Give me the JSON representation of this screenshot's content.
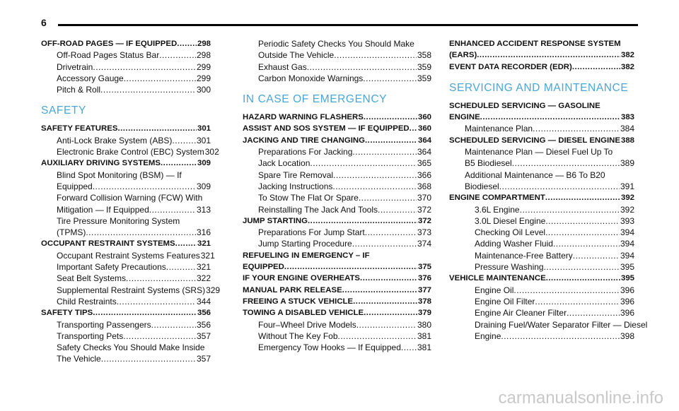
{
  "page_number": "6",
  "watermark": "carmanualsonline.info",
  "columns": [
    {
      "entries": [
        {
          "lines": [
            "OFF-ROAD PAGES — IF EQUIPPED"
          ],
          "page": "298",
          "style": "bold"
        },
        {
          "lines": [
            "Off-Road Pages Status Bar"
          ],
          "page": "298",
          "style": "sub"
        },
        {
          "lines": [
            "Drivetrain"
          ],
          "page": "299",
          "style": "sub"
        },
        {
          "lines": [
            "Accessory Gauge"
          ],
          "page": "299",
          "style": "sub"
        },
        {
          "lines": [
            "Pitch & Roll"
          ],
          "page": "300",
          "style": "sub"
        },
        {
          "heading": "SAFETY"
        },
        {
          "lines": [
            "SAFETY FEATURES"
          ],
          "page": "301",
          "style": "bold"
        },
        {
          "lines": [
            "Anti-Lock Brake System (ABS)"
          ],
          "page": "301",
          "style": "sub"
        },
        {
          "lines": [
            "Electronic Brake Control (EBC) System"
          ],
          "page": "302",
          "style": "sub"
        },
        {
          "lines": [
            "AUXILIARY DRIVING SYSTEMS"
          ],
          "page": "309",
          "style": "bold"
        },
        {
          "lines": [
            "Blind Spot Monitoring (BSM) — If",
            "Equipped"
          ],
          "page": "309",
          "style": "sub"
        },
        {
          "lines": [
            "Forward Collision Warning (FCW) With",
            "Mitigation — If Equipped"
          ],
          "page": "313",
          "style": "sub"
        },
        {
          "lines": [
            "Tire Pressure Monitoring System",
            "(TPMS)"
          ],
          "page": "316",
          "style": "sub"
        },
        {
          "lines": [
            "OCCUPANT RESTRAINT SYSTEMS"
          ],
          "page": "321",
          "style": "bold"
        },
        {
          "lines": [
            "Occupant Restraint Systems Features"
          ],
          "page": "321",
          "style": "sub"
        },
        {
          "lines": [
            "Important Safety Precautions"
          ],
          "page": "321",
          "style": "sub"
        },
        {
          "lines": [
            "Seat Belt Systems"
          ],
          "page": "322",
          "style": "sub"
        },
        {
          "lines": [
            "Supplemental Restraint Systems (SRS)"
          ],
          "page": "329",
          "style": "sub"
        },
        {
          "lines": [
            "Child Restraints"
          ],
          "page": "344",
          "style": "sub"
        },
        {
          "lines": [
            "SAFETY TIPS"
          ],
          "page": "356",
          "style": "bold"
        },
        {
          "lines": [
            "Transporting Passengers"
          ],
          "page": "356",
          "style": "sub"
        },
        {
          "lines": [
            "Transporting Pets"
          ],
          "page": "357",
          "style": "sub"
        },
        {
          "lines": [
            "Safety Checks You Should Make Inside",
            "The Vehicle"
          ],
          "page": "357",
          "style": "sub"
        }
      ]
    },
    {
      "entries": [
        {
          "lines": [
            "Periodic Safety Checks You Should Make",
            "Outside The Vehicle"
          ],
          "page": "358",
          "style": "sub"
        },
        {
          "lines": [
            "Exhaust Gas"
          ],
          "page": "359",
          "style": "sub"
        },
        {
          "lines": [
            "Carbon Monoxide Warnings"
          ],
          "page": "359",
          "style": "sub"
        },
        {
          "heading": "IN CASE OF EMERGENCY"
        },
        {
          "lines": [
            "HAZARD WARNING FLASHERS"
          ],
          "page": "360",
          "style": "bold"
        },
        {
          "lines": [
            "ASSIST AND SOS SYSTEM — IF EQUIPPED"
          ],
          "page": "360",
          "style": "bold"
        },
        {
          "lines": [
            "JACKING AND TIRE CHANGING"
          ],
          "page": "364",
          "style": "bold"
        },
        {
          "lines": [
            "Preparations For Jacking"
          ],
          "page": "364",
          "style": "sub"
        },
        {
          "lines": [
            "Jack Location"
          ],
          "page": "365",
          "style": "sub"
        },
        {
          "lines": [
            "Spare Tire Removal"
          ],
          "page": "366",
          "style": "sub"
        },
        {
          "lines": [
            "Jacking Instructions"
          ],
          "page": "368",
          "style": "sub"
        },
        {
          "lines": [
            "To Stow The Flat Or Spare"
          ],
          "page": "370",
          "style": "sub"
        },
        {
          "lines": [
            "Reinstalling The Jack And Tools"
          ],
          "page": "372",
          "style": "sub"
        },
        {
          "lines": [
            "JUMP STARTING"
          ],
          "page": "372",
          "style": "bold"
        },
        {
          "lines": [
            "Preparations For Jump Start"
          ],
          "page": "373",
          "style": "sub"
        },
        {
          "lines": [
            "Jump Starting Procedure"
          ],
          "page": "374",
          "style": "sub"
        },
        {
          "lines": [
            "REFUELING IN EMERGENCY – IF",
            "EQUIPPED"
          ],
          "page": "375",
          "style": "bold"
        },
        {
          "lines": [
            "IF YOUR ENGINE OVERHEATS"
          ],
          "page": "376",
          "style": "bold"
        },
        {
          "lines": [
            "MANUAL PARK RELEASE"
          ],
          "page": "377",
          "style": "bold"
        },
        {
          "lines": [
            "FREEING A STUCK VEHICLE"
          ],
          "page": "378",
          "style": "bold"
        },
        {
          "lines": [
            "TOWING A DISABLED VEHICLE"
          ],
          "page": "379",
          "style": "bold"
        },
        {
          "lines": [
            "Four–Wheel Drive Models"
          ],
          "page": "380",
          "style": "sub"
        },
        {
          "lines": [
            "Without The Key Fob"
          ],
          "page": "381",
          "style": "sub"
        },
        {
          "lines": [
            "Emergency Tow Hooks — If Equipped"
          ],
          "page": "381",
          "style": "sub"
        }
      ]
    },
    {
      "entries": [
        {
          "lines": [
            "ENHANCED ACCIDENT RESPONSE SYSTEM",
            "(EARS)"
          ],
          "page": "382",
          "style": "bold"
        },
        {
          "lines": [
            "EVENT DATA RECORDER (EDR)"
          ],
          "page": "382",
          "style": "bold"
        },
        {
          "heading": "SERVICING AND MAINTENANCE"
        },
        {
          "lines": [
            "SCHEDULED SERVICING — GASOLINE",
            "ENGINE"
          ],
          "page": "383",
          "style": "bold"
        },
        {
          "lines": [
            "Maintenance Plan"
          ],
          "page": "384",
          "style": "sub"
        },
        {
          "lines": [
            "SCHEDULED SERVICING — DIESEL ENGINE"
          ],
          "page": "388",
          "style": "bold"
        },
        {
          "lines": [
            "Maintenance Plan — Diesel Fuel Up To",
            "B5 Biodiesel"
          ],
          "page": "389",
          "style": "sub"
        },
        {
          "lines": [
            "Additional Maintenance — B6 To B20",
            "Biodiesel"
          ],
          "page": "391",
          "style": "sub"
        },
        {
          "lines": [
            "ENGINE COMPARTMENT"
          ],
          "page": "392",
          "style": "bold"
        },
        {
          "lines": [
            "3.6L Engine"
          ],
          "page": "392",
          "style": "sub2"
        },
        {
          "lines": [
            "3.0L Diesel Engine"
          ],
          "page": "393",
          "style": "sub2"
        },
        {
          "lines": [
            "Checking Oil Level"
          ],
          "page": "394",
          "style": "sub2"
        },
        {
          "lines": [
            "Adding Washer Fluid"
          ],
          "page": "394",
          "style": "sub2"
        },
        {
          "lines": [
            "Maintenance-Free Battery"
          ],
          "page": "394",
          "style": "sub2"
        },
        {
          "lines": [
            "Pressure Washing"
          ],
          "page": "395",
          "style": "sub2"
        },
        {
          "lines": [
            "VEHICLE MAINTENANCE"
          ],
          "page": "395",
          "style": "bold"
        },
        {
          "lines": [
            "Engine Oil"
          ],
          "page": "396",
          "style": "sub2"
        },
        {
          "lines": [
            "Engine Oil Filter"
          ],
          "page": "396",
          "style": "sub2"
        },
        {
          "lines": [
            "Engine Air Cleaner Filter"
          ],
          "page": "396",
          "style": "sub2"
        },
        {
          "lines": [
            "Draining Fuel/Water Separator Filter — Diesel",
            "Engine"
          ],
          "page": "398",
          "style": "sub2"
        }
      ]
    }
  ]
}
